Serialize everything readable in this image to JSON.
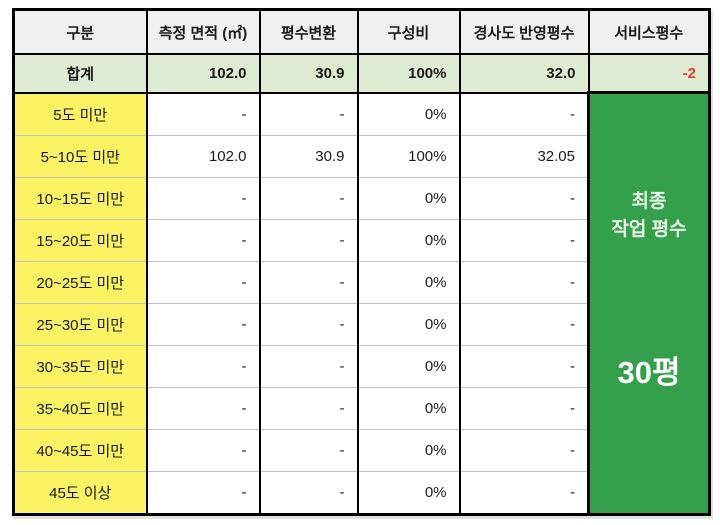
{
  "colors": {
    "header_bg": "#f0f0f0",
    "total_row_bg": "#ddebd2",
    "category_bg": "#fbf364",
    "summary_bg": "#34a04c",
    "negative_value_text": "#e8392c",
    "summary_title_text": "#eaf5e7",
    "summary_value_text": "#ffffff",
    "grid_line": "#c3c3c3",
    "border": "#000000"
  },
  "table": {
    "headers": [
      "구분",
      "측정 면적 (㎡)",
      "평수변환",
      "구성비",
      "경사도 반영평수",
      "서비스평수"
    ],
    "total_row": {
      "label": "합계",
      "values": [
        "102.0",
        "30.9",
        "100%",
        "32.0"
      ],
      "service_value": "-2"
    },
    "rows": [
      {
        "label": "5도 미만",
        "values": [
          "-",
          "-",
          "0%",
          "-"
        ]
      },
      {
        "label": "5~10도 미만",
        "values": [
          "102.0",
          "30.9",
          "100%",
          "32.05"
        ]
      },
      {
        "label": "10~15도 미만",
        "values": [
          "-",
          "-",
          "0%",
          "-"
        ]
      },
      {
        "label": "15~20도 미만",
        "values": [
          "-",
          "-",
          "0%",
          "-"
        ]
      },
      {
        "label": "20~25도 미만",
        "values": [
          "-",
          "-",
          "0%",
          "-"
        ]
      },
      {
        "label": "25~30도 미만",
        "values": [
          "-",
          "-",
          "0%",
          "-"
        ]
      },
      {
        "label": "30~35도 미만",
        "values": [
          "-",
          "-",
          "0%",
          "-"
        ]
      },
      {
        "label": "35~40도 미만",
        "values": [
          "-",
          "-",
          "0%",
          "-"
        ]
      },
      {
        "label": "40~45도 미만",
        "values": [
          "-",
          "-",
          "0%",
          "-"
        ]
      },
      {
        "label": "45도 이상",
        "values": [
          "-",
          "-",
          "0%",
          "-"
        ]
      }
    ],
    "summary": {
      "title_line1": "최종",
      "title_line2": "작업 평수",
      "value": "30평"
    }
  }
}
